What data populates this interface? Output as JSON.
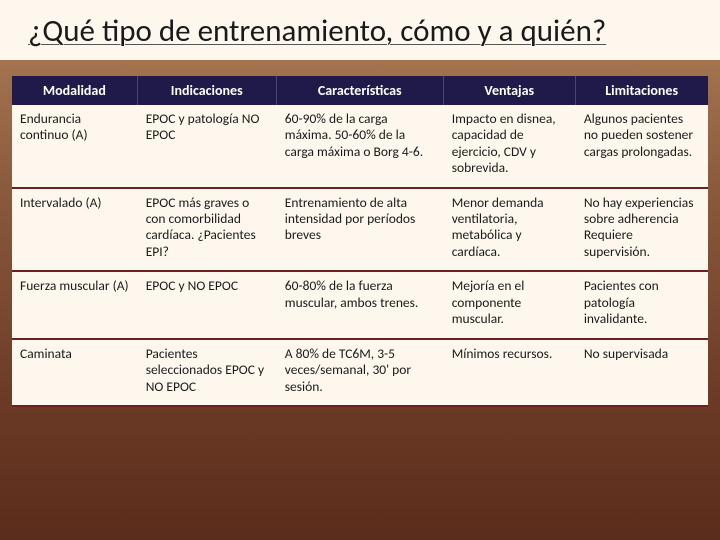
{
  "title": "¿Qué tipo de entrenamiento, cómo y a quién?",
  "table": {
    "columns": [
      "Modalidad",
      "Indicaciones",
      "Características",
      "Ventajas",
      "Limitaciones"
    ],
    "column_widths_pct": [
      18,
      20,
      24,
      19,
      19
    ],
    "header_bg": "#1f1a4a",
    "header_fg": "#ffffff",
    "body_bg": "#fdf7ed",
    "row_divider_color": "#6b1f1f",
    "font_family": "Calibri",
    "header_fontsize_pt": 14,
    "body_fontsize_pt": 13.5,
    "rows": [
      {
        "modalidad": "Endurancia continuo (A)",
        "indicaciones": "EPOC y patología NO EPOC",
        "caracteristicas": "60-90% de la carga máxima.\n50-60% de la carga máxima o\nBorg 4-6.",
        "ventajas": "Impacto en disnea, capacidad de ejercicio, CDV y sobrevida.",
        "limitaciones": "Algunos pacientes no pueden sostener cargas prolongadas."
      },
      {
        "modalidad": "Intervalado (A)",
        "indicaciones": "EPOC más graves o con comorbilidad cardíaca.\n¿Pacientes EPI?",
        "caracteristicas": "Entrenamiento de alta intensidad por períodos breves",
        "ventajas": "Menor demanda ventilatoria, metabólica y cardíaca.",
        "limitaciones": "No hay experiencias sobre adherencia Requiere supervisión."
      },
      {
        "modalidad": "Fuerza muscular (A)",
        "indicaciones": "EPOC y NO EPOC",
        "caracteristicas": "60-80% de la fuerza muscular, ambos trenes.",
        "ventajas": "Mejoría en el componente muscular.",
        "limitaciones": "Pacientes con patología invalidante."
      },
      {
        "modalidad": "Caminata",
        "indicaciones": "Pacientes seleccionados EPOC y NO EPOC",
        "caracteristicas": "A 80% de TC6M, 3-5 veces/semanal, 30' por sesión.",
        "ventajas": "Mínimos recursos.",
        "limitaciones": "No supervisada"
      }
    ]
  },
  "background_gradient": [
    "#b08058",
    "#8a5a3d",
    "#6b3a26",
    "#5a2c1b"
  ]
}
